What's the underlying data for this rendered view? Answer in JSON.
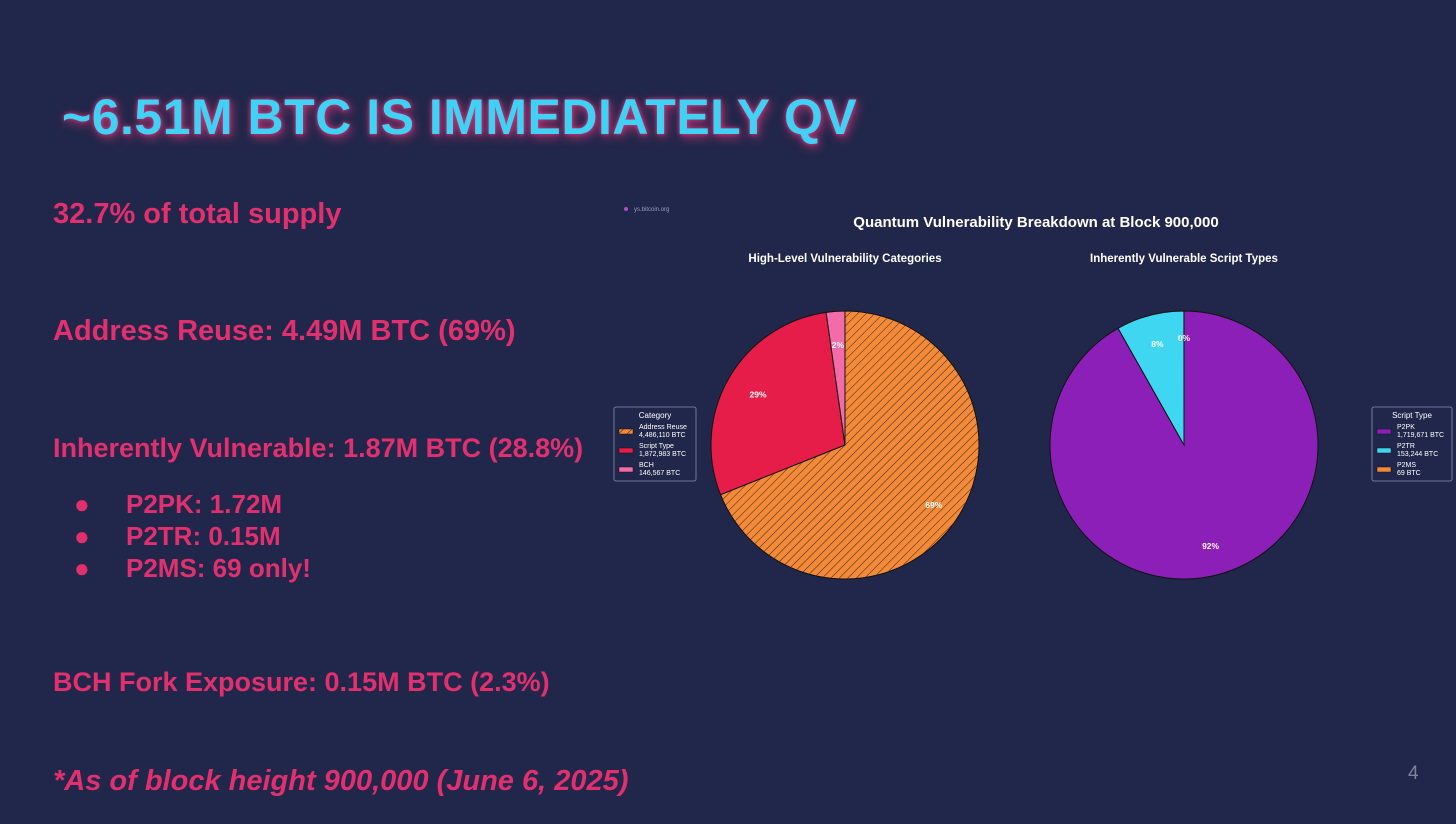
{
  "slide": {
    "title": "~6.51M BTC IS IMMEDIATELY QV",
    "supply_line": "32.7% of total supply",
    "address_reuse_line": "Address Reuse: 4.49M BTC (69%)",
    "inherent_line": "Inherently Vulnerable: 1.87M BTC (28.8%)",
    "bullet_char": "●",
    "bullets": [
      "P2PK: 1.72M",
      "P2TR: 0.15M",
      "P2MS: 69 only!"
    ],
    "bch_line": "BCH Fork Exposure: 0.15M BTC (2.3%)",
    "footnote": "*As of block height 900,000 (June 6, 2025)",
    "page_number": "4",
    "watermark": "ys.bitcoin.org"
  },
  "chart_data": [
    {
      "type": "pie",
      "suptitle": "Quantum Vulnerability Breakdown at Block 900,000",
      "title": "High-Level Vulnerability Categories",
      "legend_title": "Category",
      "legend_position": "left",
      "slices": [
        {
          "name": "Address Reuse",
          "value": 4486110,
          "value_label": "4,486,110 BTC",
          "pct_label": "69%",
          "color": "#f28a3a",
          "hatch": true
        },
        {
          "name": "Script Type",
          "value": 1872983,
          "value_label": "1,872,983 BTC",
          "pct_label": "29%",
          "color": "#e61d48",
          "hatch": false
        },
        {
          "name": "BCH",
          "value": 146567,
          "value_label": "146,567 BTC",
          "pct_label": "2%",
          "color": "#f36ba8",
          "hatch": false
        }
      ]
    },
    {
      "type": "pie",
      "title": "Inherently Vulnerable Script Types",
      "legend_title": "Script Type",
      "legend_position": "right",
      "slices": [
        {
          "name": "P2PK",
          "value": 1719671,
          "value_label": "1,719,671 BTC",
          "pct_label": "92%",
          "color": "#8b1fb8",
          "hatch": false
        },
        {
          "name": "P2TR",
          "value": 153244,
          "value_label": "153,244 BTC",
          "pct_label": "8%",
          "color": "#3fd6f2",
          "hatch": false
        },
        {
          "name": "P2MS",
          "value": 69,
          "value_label": "69 BTC",
          "pct_label": "0%",
          "color": "#f28a3a",
          "hatch": false
        }
      ]
    }
  ]
}
